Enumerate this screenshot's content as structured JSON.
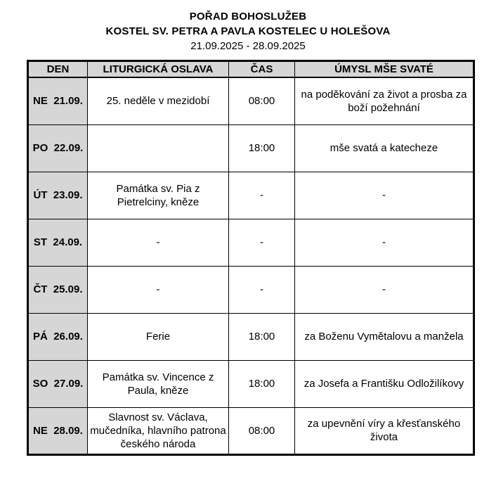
{
  "header": {
    "title": "POŘAD BOHOSLUŽEB",
    "subtitle": "KOSTEL SV. PETRA A PAVLA KOSTELEC U HOLEŠOVA",
    "date_range": "21.09.2025 - 28.09.2025"
  },
  "table": {
    "columns": [
      "DEN",
      "LITURGICKÁ OSLAVA",
      "ČAS",
      "ÚMYSL MŠE SVATÉ"
    ],
    "rows": [
      {
        "den": "NE  21.09.",
        "oslava": "25. neděle v mezidobí",
        "cas": "08:00",
        "umysl": "na poděkování za život a prosba za boží požehnání"
      },
      {
        "den": "PO  22.09.",
        "oslava": "",
        "cas": "18:00",
        "umysl": "mše svatá a katecheze"
      },
      {
        "den": "ÚT  23.09.",
        "oslava": "Památka sv. Pia z Pietrelciny, kněze",
        "cas": "-",
        "umysl": "-"
      },
      {
        "den": "ST  24.09.",
        "oslava": "-",
        "cas": "-",
        "umysl": "-"
      },
      {
        "den": "ČT  25.09.",
        "oslava": "-",
        "cas": "-",
        "umysl": "-"
      },
      {
        "den": "PÁ  26.09.",
        "oslava": "Ferie",
        "cas": "18:00",
        "umysl": "za Boženu Vymětalovu a manžela"
      },
      {
        "den": "SO  27.09.",
        "oslava": "Památka sv. Vincence z Paula, kněze",
        "cas": "18:00",
        "umysl": "za Josefa a Františku Odložilíkovy"
      },
      {
        "den": "NE  28.09.",
        "oslava": "Slavnost sv. Václava, mučedníka, hlavního patrona českého národa",
        "cas": "08:00",
        "umysl": "za upevnění víry a křesťanského života"
      }
    ],
    "colors": {
      "header_bg": "#d6d6d6",
      "day_bg": "#d6d6d6",
      "border": "#000000"
    }
  }
}
